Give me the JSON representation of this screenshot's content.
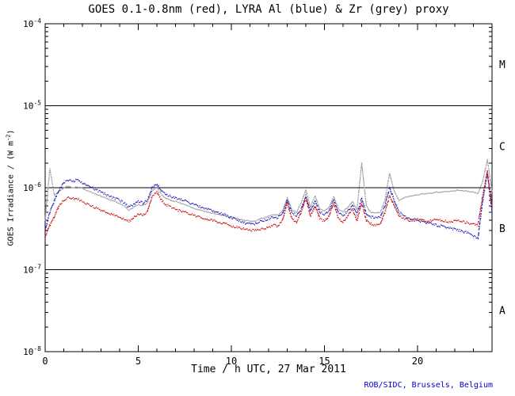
{
  "page": {
    "background": "#ffffff"
  },
  "footer": "ROB/SIDC, Brussels, Belgium",
  "footer_color": "#0000cc",
  "chart_data": {
    "type": "scatter",
    "title": "GOES 0.1-0.8nm (red), LYRA Al (blue) & Zr (grey) proxy",
    "xlabel": "Time / h UTC, 27 Mar 2011",
    "ylabel_parts": {
      "main": "GOES Irradiance / (W m",
      "sup": "-2",
      "close": ")"
    },
    "x_range": [
      0,
      24
    ],
    "x_major_ticks": [
      0,
      5,
      10,
      15,
      20
    ],
    "x_minor_tick_step": 1,
    "y_scale": "log",
    "y_range_exponents": [
      -8,
      -4
    ],
    "y_tick_base": "10",
    "y_tick_exponents": [
      -4,
      -5,
      -6,
      -7,
      -8
    ],
    "hlines": [
      1e-05,
      1e-06,
      1e-07
    ],
    "flare_classes": [
      {
        "label": "M",
        "between_exponents": [
          -5,
          -4
        ]
      },
      {
        "label": "C",
        "between_exponents": [
          -6,
          -5
        ]
      },
      {
        "label": "B",
        "between_exponents": [
          -7,
          -6
        ]
      },
      {
        "label": "A",
        "between_exponents": [
          -8,
          -7
        ]
      }
    ],
    "x_step_hours": 0.25,
    "series": [
      {
        "id": "lyra-zr-grey",
        "name": "LYRA Zr proxy (grey)",
        "color": "#9e9e9e",
        "values": [
          4e-07,
          1.7e-06,
          8e-07,
          9e-07,
          1e-06,
          1.05e-06,
          1e-06,
          1.02e-06,
          9.8e-07,
          9.2e-07,
          8.8e-07,
          8.3e-07,
          7.9e-07,
          7.5e-07,
          7.1e-07,
          6.8e-07,
          6.4e-07,
          6e-07,
          5.3e-07,
          5.8e-07,
          6.2e-07,
          6e-07,
          6.6e-07,
          9.2e-07,
          1e-06,
          8.2e-07,
          7.4e-07,
          7e-07,
          6.8e-07,
          6.5e-07,
          6.2e-07,
          5.9e-07,
          5.6e-07,
          5.4e-07,
          5.2e-07,
          5e-07,
          4.9e-07,
          4.7e-07,
          4.6e-07,
          4.5e-07,
          4.3e-07,
          4.2e-07,
          4.1e-07,
          4e-07,
          3.9e-07,
          3.9e-07,
          4.1e-07,
          4.3e-07,
          4.5e-07,
          4.7e-07,
          4.6e-07,
          5.2e-07,
          7.5e-07,
          5.4e-07,
          5e-07,
          6.5e-07,
          9.5e-07,
          5.8e-07,
          8e-07,
          5.5e-07,
          5.2e-07,
          5.8e-07,
          7.8e-07,
          5.5e-07,
          5.1e-07,
          5.8e-07,
          6.8e-07,
          5.4e-07,
          2e-06,
          6e-07,
          5e-07,
          4.9e-07,
          5e-07,
          7e-07,
          1.5e-06,
          9e-07,
          7e-07,
          7.5e-07,
          7.8e-07,
          8e-07,
          8.2e-07,
          8.4e-07,
          8.5e-07,
          8.6e-07,
          8.8e-07,
          8.9e-07,
          9e-07,
          9e-07,
          9.2e-07,
          9.3e-07,
          9.2e-07,
          9e-07,
          8.8e-07,
          8.5e-07,
          1.2e-06,
          2.2e-06,
          9e-07
        ]
      },
      {
        "id": "lyra-al-blue",
        "name": "LYRA Al proxy (blue)",
        "color": "#2222bb",
        "values": [
          3e-07,
          5e-07,
          7e-07,
          9.5e-07,
          1.15e-06,
          1.25e-06,
          1.2e-06,
          1.25e-06,
          1.15e-06,
          1.05e-06,
          1e-06,
          9.3e-07,
          8.8e-07,
          8.3e-07,
          7.8e-07,
          7.4e-07,
          7e-07,
          6.5e-07,
          5.8e-07,
          6.2e-07,
          6.8e-07,
          6.5e-07,
          7.2e-07,
          1e-06,
          1.1e-06,
          9e-07,
          8.2e-07,
          7.8e-07,
          7.5e-07,
          7.2e-07,
          7e-07,
          6.6e-07,
          6.2e-07,
          5.9e-07,
          5.6e-07,
          5.4e-07,
          5.2e-07,
          5e-07,
          4.8e-07,
          4.6e-07,
          4.3e-07,
          4.1e-07,
          3.9e-07,
          3.7e-07,
          3.6e-07,
          3.6e-07,
          3.8e-07,
          4e-07,
          4.2e-07,
          4.4e-07,
          4.3e-07,
          4.8e-07,
          7e-07,
          5e-07,
          4.6e-07,
          5.5e-07,
          8e-07,
          5.2e-07,
          6.8e-07,
          5e-07,
          4.7e-07,
          5.2e-07,
          7e-07,
          5e-07,
          4.6e-07,
          5.2e-07,
          6e-07,
          4.8e-07,
          7.5e-07,
          4.8e-07,
          4.4e-07,
          4.3e-07,
          4.4e-07,
          6e-07,
          1e-06,
          7e-07,
          5e-07,
          4.6e-07,
          4.3e-07,
          4.1e-07,
          4e-07,
          3.8e-07,
          3.7e-07,
          3.6e-07,
          3.5e-07,
          3.4e-07,
          3.3e-07,
          3.2e-07,
          3.1e-07,
          3e-07,
          2.9e-07,
          2.8e-07,
          2.6e-07,
          2.4e-07,
          7e-07,
          1.5e-06,
          5e-07
        ]
      },
      {
        "id": "goes-red",
        "name": "GOES 0.1-0.8nm (red)",
        "color": "#cc1111",
        "values": [
          2.5e-07,
          3.5e-07,
          4.5e-07,
          6e-07,
          7e-07,
          7.5e-07,
          7.5e-07,
          7.2e-07,
          6.8e-07,
          6.3e-07,
          6e-07,
          5.6e-07,
          5.3e-07,
          5e-07,
          4.8e-07,
          4.6e-07,
          4.4e-07,
          4.2e-07,
          3.9e-07,
          4.3e-07,
          4.8e-07,
          4.6e-07,
          5.2e-07,
          8e-07,
          8.8e-07,
          7e-07,
          6.2e-07,
          5.8e-07,
          5.5e-07,
          5.2e-07,
          5e-07,
          4.8e-07,
          4.6e-07,
          4.4e-07,
          4.2e-07,
          4.1e-07,
          4e-07,
          3.8e-07,
          3.7e-07,
          3.6e-07,
          3.4e-07,
          3.3e-07,
          3.2e-07,
          3.1e-07,
          3e-07,
          3e-07,
          3.1e-07,
          3.2e-07,
          3.3e-07,
          3.5e-07,
          3.4e-07,
          4e-07,
          6.5e-07,
          4.2e-07,
          3.8e-07,
          5e-07,
          7.5e-07,
          4.5e-07,
          6e-07,
          4.2e-07,
          3.9e-07,
          4.5e-07,
          6.5e-07,
          4.2e-07,
          3.8e-07,
          4.5e-07,
          5.5e-07,
          4e-07,
          6.5e-07,
          4e-07,
          3.6e-07,
          3.5e-07,
          3.6e-07,
          5e-07,
          8e-07,
          6e-07,
          4.5e-07,
          4.2e-07,
          4e-07,
          4e-07,
          4.1e-07,
          4e-07,
          3.9e-07,
          4e-07,
          4.1e-07,
          4e-07,
          3.9e-07,
          3.8e-07,
          3.9e-07,
          4e-07,
          3.8e-07,
          3.7e-07,
          3.6e-07,
          3.5e-07,
          8e-07,
          1.6e-06,
          6e-07
        ]
      }
    ]
  }
}
